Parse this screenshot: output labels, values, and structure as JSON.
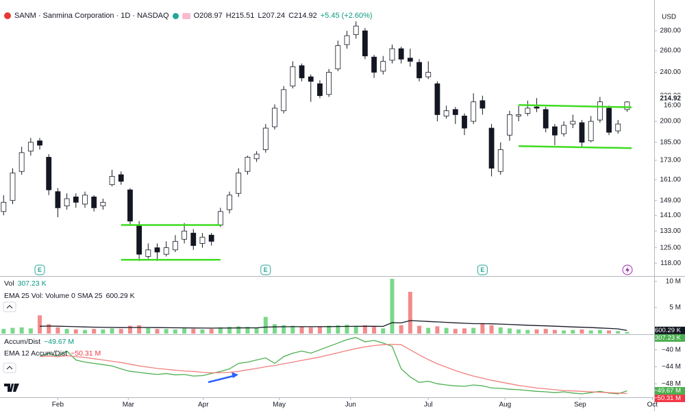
{
  "chart_data": [
    {
      "type": "candlestick",
      "title": "SANM · Sanmina Corporation · 1D · NASDAQ",
      "ohlc_labels": [
        "O208.97",
        "H215.51",
        "L207.24",
        "C214.92"
      ],
      "change": "+5.45 (+2.60%)",
      "currency": "USD",
      "last_price": 214.92,
      "countdown": "16:00",
      "log": true,
      "up_color": "#ffffff",
      "down_color": "#131722",
      "wick_color": "#131722",
      "xlim": [
        -0.4,
        72
      ],
      "xticks": [
        {
          "value": 6,
          "label": "Feb"
        },
        {
          "value": 13.8,
          "label": "Mar"
        },
        {
          "value": 22.1,
          "label": "Apr"
        },
        {
          "value": 30.5,
          "label": "May"
        },
        {
          "value": 38.4,
          "label": "Jun"
        },
        {
          "value": 47,
          "label": "Jul"
        },
        {
          "value": 55.5,
          "label": "Aug"
        },
        {
          "value": 63.8,
          "label": "Sep"
        },
        {
          "value": 71.8,
          "label": "Oct"
        }
      ],
      "ylim": [
        112.5,
        314
      ],
      "yticks": [
        {
          "value": 280,
          "label": "280.00"
        },
        {
          "value": 260,
          "label": "260.00"
        },
        {
          "value": 240,
          "label": "240.00"
        },
        {
          "value": 220,
          "label": "220.00"
        },
        {
          "value": 200,
          "label": "200.00"
        },
        {
          "value": 185,
          "label": "185.00"
        },
        {
          "value": 173,
          "label": "173.00"
        },
        {
          "value": 161,
          "label": "161.00"
        },
        {
          "value": 149,
          "label": "149.00"
        },
        {
          "value": 141,
          "label": "141.00"
        },
        {
          "value": 133,
          "label": "133.00"
        },
        {
          "value": 125,
          "label": "125.00"
        },
        {
          "value": 118,
          "label": "118.00"
        }
      ],
      "ohlc": [
        [
          143,
          152,
          141,
          148
        ],
        [
          149,
          168,
          147,
          165
        ],
        [
          166,
          182,
          164,
          178
        ],
        [
          179,
          188,
          176,
          185
        ],
        [
          186,
          188,
          180,
          183
        ],
        [
          175,
          177,
          152,
          155
        ],
        [
          154,
          156,
          140,
          145
        ],
        [
          146,
          153,
          144,
          150
        ],
        [
          151,
          153,
          145,
          148
        ],
        [
          147,
          154,
          145,
          152
        ],
        [
          151,
          152,
          143,
          145
        ],
        [
          146,
          150,
          144,
          148
        ],
        [
          158,
          167,
          157,
          163
        ],
        [
          164,
          166,
          158,
          160
        ],
        [
          155,
          156,
          136,
          138
        ],
        [
          136,
          138,
          119,
          122
        ],
        [
          121,
          127,
          120,
          124
        ],
        [
          125,
          127,
          119,
          123
        ],
        [
          122,
          128,
          121,
          125
        ],
        [
          124,
          131,
          123,
          128
        ],
        [
          129,
          137,
          127,
          133
        ],
        [
          132,
          134,
          124,
          126
        ],
        [
          127,
          132,
          125,
          130
        ],
        [
          131,
          132,
          126,
          128
        ],
        [
          136,
          145,
          135,
          143
        ],
        [
          144,
          154,
          142,
          152
        ],
        [
          153,
          168,
          151,
          165
        ],
        [
          166,
          176,
          164,
          175
        ],
        [
          174,
          179,
          172,
          177
        ],
        [
          180,
          198,
          178,
          195
        ],
        [
          196,
          213,
          194,
          210
        ],
        [
          208,
          228,
          206,
          225
        ],
        [
          228,
          250,
          226,
          245
        ],
        [
          246,
          248,
          232,
          235
        ],
        [
          236,
          238,
          215,
          232
        ],
        [
          230,
          233,
          218,
          220
        ],
        [
          221,
          243,
          219,
          240
        ],
        [
          243,
          270,
          241,
          265
        ],
        [
          266,
          280,
          262,
          275
        ],
        [
          276,
          290,
          272,
          285
        ],
        [
          280,
          283,
          252,
          255
        ],
        [
          254,
          256,
          235,
          240
        ],
        [
          241,
          255,
          238,
          250
        ],
        [
          251,
          266,
          248,
          262
        ],
        [
          262,
          264,
          248,
          252
        ],
        [
          253,
          262,
          245,
          250
        ],
        [
          249,
          252,
          232,
          235
        ],
        [
          236,
          250,
          234,
          240
        ],
        [
          230,
          232,
          200,
          205
        ],
        [
          204,
          212,
          202,
          208
        ],
        [
          209,
          211,
          198,
          205
        ],
        [
          204,
          206,
          190,
          195
        ],
        [
          200,
          222,
          198,
          215
        ],
        [
          216,
          220,
          205,
          210
        ],
        [
          195,
          198,
          163,
          168
        ],
        [
          166,
          185,
          164,
          180
        ],
        [
          190,
          208,
          186,
          205
        ],
        [
          204,
          212,
          200,
          205
        ],
        [
          206,
          216,
          204,
          210
        ],
        [
          211,
          218,
          207,
          210
        ],
        [
          209,
          211,
          192,
          195
        ],
        [
          196,
          198,
          183,
          190
        ],
        [
          191,
          200,
          189,
          197
        ],
        [
          198,
          205,
          195,
          200
        ],
        [
          199,
          201,
          182,
          185
        ],
        [
          186,
          204,
          185,
          200
        ],
        [
          201,
          219,
          199,
          215
        ],
        [
          210,
          212,
          190,
          192
        ],
        [
          193,
          201,
          191,
          198
        ],
        [
          208.97,
          215.51,
          207.24,
          214.92
        ]
      ],
      "lines": [
        {
          "color": "#3ddc1f",
          "from": [
            13,
            136
          ],
          "to": [
            24,
            136
          ]
        },
        {
          "color": "#3ddc1f",
          "from": [
            13,
            119.5
          ],
          "to": [
            24,
            119.5
          ]
        },
        {
          "color": "#3ddc1f",
          "from": [
            57,
            212.5
          ],
          "to": [
            69.5,
            210.7
          ]
        },
        {
          "color": "#3ddc1f",
          "from": [
            57,
            182.4
          ],
          "to": [
            69.5,
            181
          ]
        }
      ],
      "events": [
        {
          "x": 4,
          "label": "E"
        },
        {
          "x": 29,
          "label": "E"
        },
        {
          "x": 53,
          "label": "E"
        }
      ]
    },
    {
      "type": "bar",
      "up_color": "#7bd88a",
      "down_color": "#f28b8b",
      "ylim": [
        0,
        10900000
      ],
      "yticks": [
        {
          "value": 10000000,
          "label": "10 M"
        },
        {
          "value": 5000000,
          "label": "5 M"
        }
      ],
      "series": [
        {
          "name": "Vol",
          "type": "bar",
          "color": "#4caf50",
          "last_label": "307.23 K",
          "values": [
            900000,
            1100000,
            1200000,
            1000000,
            3500000,
            1800000,
            1200000,
            900000,
            800000,
            700000,
            900000,
            800000,
            1000000,
            900000,
            1500000,
            1600000,
            1100000,
            900000,
            900000,
            800000,
            1000000,
            900000,
            800000,
            900000,
            1200000,
            1300000,
            1400000,
            1300000,
            1100000,
            3200000,
            1800000,
            1600000,
            1500000,
            1300000,
            1200000,
            1400000,
            1500000,
            1600000,
            1700000,
            1500000,
            1600000,
            1300000,
            1000000,
            10500000,
            1600000,
            8000000,
            1500000,
            1100000,
            1400000,
            1100000,
            900000,
            1000000,
            1100000,
            2000000,
            1600000,
            1200000,
            1000000,
            800000,
            700000,
            800000,
            900000,
            700000,
            600000,
            700000,
            800000,
            600000,
            700000,
            600000,
            500000,
            307230
          ]
        },
        {
          "name": "EMA 25 Vol: Volume 0 SMA 25",
          "type": "line",
          "color": "#131722",
          "last_label": "600.29 K",
          "values": [
            null,
            null,
            null,
            null,
            1400000,
            1450000,
            1420000,
            1380000,
            1330000,
            1280000,
            1240000,
            1200000,
            1180000,
            1160000,
            1170000,
            1180000,
            1170000,
            1150000,
            1130000,
            1110000,
            1100000,
            1080000,
            1060000,
            1050000,
            1060000,
            1070000,
            1090000,
            1100000,
            1100000,
            1250000,
            1290000,
            1310000,
            1320000,
            1320000,
            1320000,
            1330000,
            1340000,
            1360000,
            1380000,
            1390000,
            1400000,
            1400000,
            1380000,
            2100000,
            2050000,
            2500000,
            2420000,
            2320000,
            2250000,
            2160000,
            2060000,
            1980000,
            1910000,
            1910000,
            1880000,
            1820000,
            1760000,
            1680000,
            1600000,
            1540000,
            1480000,
            1420000,
            1350000,
            1280000,
            1220000,
            1150000,
            1080000,
            1000000,
            900000,
            600290
          ]
        }
      ]
    },
    {
      "type": "line",
      "ylim": [
        -51.2,
        -36.5
      ],
      "yticks": [
        {
          "value": -40,
          "label": "−40 M"
        },
        {
          "value": -44,
          "label": "−44 M"
        },
        {
          "value": -48,
          "label": "−48 M"
        }
      ],
      "series": [
        {
          "name": "Accum/Dist",
          "color": "#4caf50",
          "last_label": "−49.67 M",
          "values": [
            null,
            null,
            null,
            null,
            -41.6,
            -40.8,
            -41.6,
            -40.3,
            -42.4,
            -42.9,
            -43.2,
            -43.5,
            -43.8,
            -44.5,
            -45.1,
            -45.3,
            -45.6,
            -45.8,
            -45.6,
            -45.9,
            -45.8,
            -46.2,
            -46.1,
            -45.6,
            -45.1,
            -44.5,
            -43.2,
            -42.9,
            -42.4,
            -41.9,
            -43.2,
            -41.6,
            -40.8,
            -40.3,
            -40.8,
            -40,
            -39.2,
            -38.4,
            -37.6,
            -37.1,
            -38.1,
            -37.8,
            -38.4,
            -39.2,
            -44.5,
            -46.4,
            -47.7,
            -47.4,
            -48,
            -48.3,
            -48.5,
            -48.6,
            -48.3,
            -48.5,
            -49,
            -49.1,
            -49.3,
            -49.4,
            -49.6,
            -49.8,
            -49.9,
            -50.1,
            -49.9,
            -50.2,
            -50.4,
            -50.1,
            -49.8,
            -50.2,
            -50.4,
            -49.67
          ]
        },
        {
          "name": "EMA 12 Accum/Dist",
          "color": "#f07f7f",
          "last_label": "−50.31 M",
          "values": [
            null,
            null,
            null,
            null,
            -41.6,
            -41.5,
            -41.6,
            -41.4,
            -41.6,
            -41.8,
            -42.1,
            -42.4,
            -42.7,
            -43.0,
            -43.4,
            -43.8,
            -44.1,
            -44.4,
            -44.6,
            -44.8,
            -45.0,
            -45.1,
            -45.3,
            -45.4,
            -45.4,
            -45.3,
            -45.1,
            -44.7,
            -44.4,
            -44.0,
            -43.7,
            -43.3,
            -42.9,
            -42.5,
            -42.1,
            -41.7,
            -41.2,
            -40.7,
            -40.2,
            -39.7,
            -39.3,
            -39.0,
            -38.8,
            -38.7,
            -38.8,
            -40.0,
            -41.2,
            -42.3,
            -43.3,
            -44.1,
            -44.9,
            -45.6,
            -46.2,
            -46.7,
            -47.2,
            -47.6,
            -48.0,
            -48.4,
            -48.7,
            -49.0,
            -49.2,
            -49.4,
            -49.6,
            -49.7,
            -49.8,
            -49.9,
            -50.0,
            -50.1,
            -50.2,
            -50.31
          ]
        }
      ]
    }
  ]
}
